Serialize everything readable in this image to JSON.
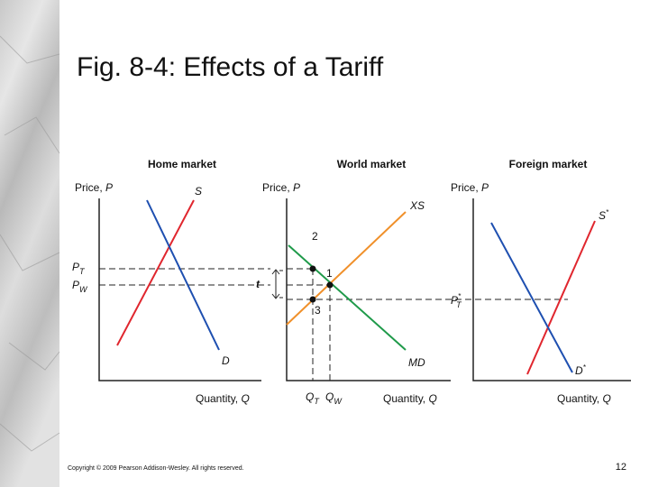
{
  "header": {
    "title": "Fig. 8-4: Effects of a Tariff"
  },
  "panels": [
    {
      "title": "Home market",
      "y_axis": "Price, ",
      "y_var": "P",
      "x_axis": "Quantity, ",
      "x_var": "Q",
      "curves": [
        "S",
        "D"
      ],
      "price_labels": [
        {
          "main": "P",
          "sub": "T"
        },
        {
          "main": "P",
          "sub": "W"
        }
      ],
      "tariff": "t"
    },
    {
      "title": "World market",
      "y_axis": "Price, ",
      "y_var": "P",
      "x_axis": "Quantity, ",
      "x_var": "Q",
      "curves": [
        "XS",
        "MD"
      ],
      "points": [
        "2",
        "1",
        "3"
      ],
      "quantity_labels": [
        {
          "main": "Q",
          "sub": "T"
        },
        {
          "main": "Q",
          "sub": "W"
        }
      ]
    },
    {
      "title": "Foreign market",
      "y_axis": "Price, ",
      "y_var": "P",
      "x_axis": "Quantity, ",
      "x_var": "Q",
      "curves": [
        {
          "main": "S",
          "sup": "*"
        },
        {
          "main": "D",
          "sup": "*"
        }
      ],
      "price_labels": [
        {
          "main": "P",
          "sup": "*",
          "sub": "T"
        }
      ]
    }
  ],
  "footer": {
    "copyright": "Copyright © 2009 Pearson Addison-Wesley. All rights reserved.",
    "page": "12"
  }
}
